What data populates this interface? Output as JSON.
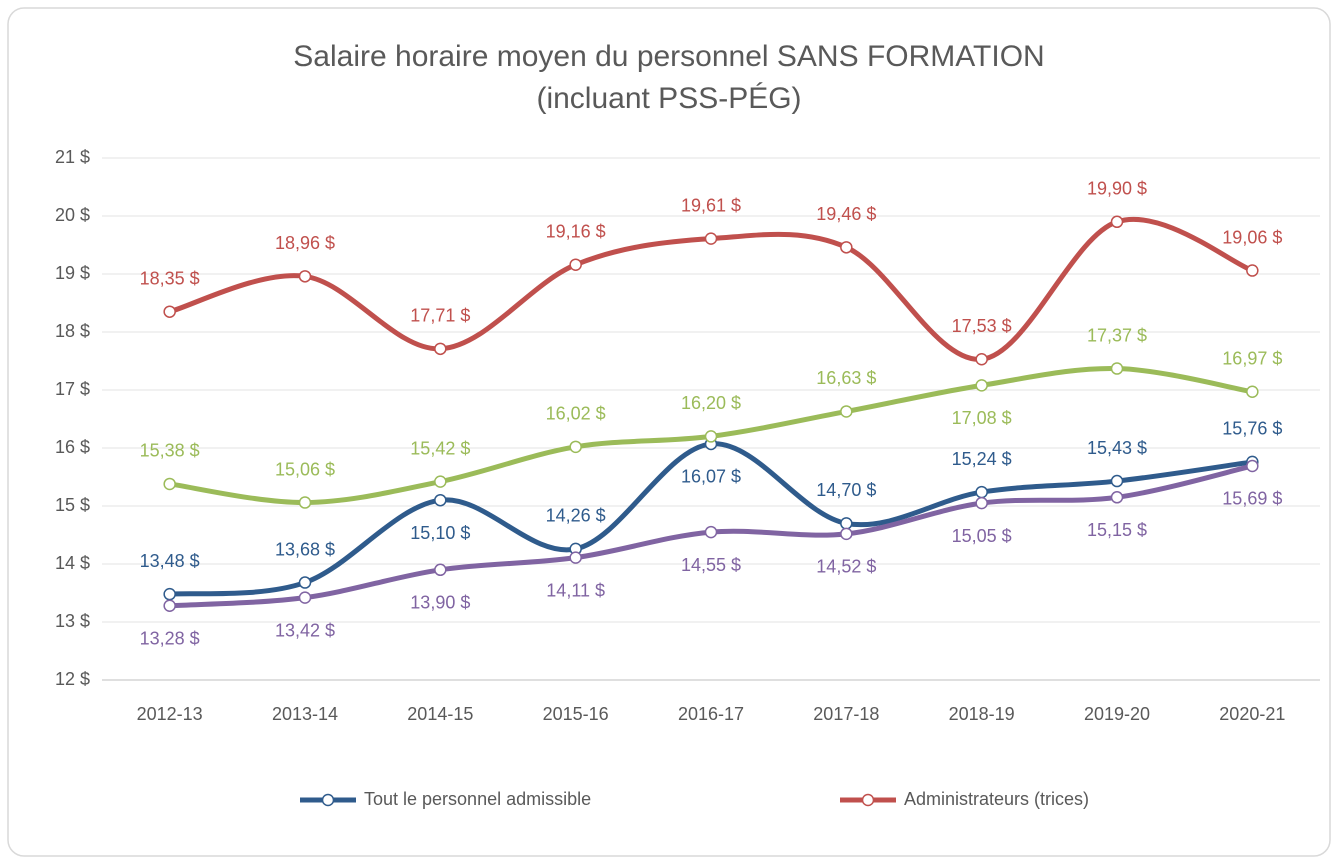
{
  "chart_data": {
    "type": "line",
    "title": "Salaire horaire moyen du personnel SANS FORMATION",
    "subtitle": "(incluant PSS-PÉG)",
    "categories": [
      "2012-13",
      "2013-14",
      "2014-15",
      "2015-16",
      "2016-17",
      "2017-18",
      "2018-19",
      "2019-20",
      "2020-21"
    ],
    "series": [
      {
        "name": "Tout le personnel admissible",
        "color": "#2f5b8c",
        "values": [
          13.48,
          13.68,
          15.1,
          14.26,
          16.07,
          14.7,
          15.24,
          15.43,
          15.76
        ],
        "value_labels": [
          "13,48 $",
          "13,68 $",
          "15,10 $",
          "14,26 $",
          "16,07 $",
          "14,70 $",
          "15,24 $",
          "15,43 $",
          "15,76 $"
        ]
      },
      {
        "name": "Administrateurs (trices)",
        "color": "#c0504d",
        "values": [
          18.35,
          18.96,
          17.71,
          19.16,
          19.61,
          19.46,
          17.53,
          19.9,
          19.06
        ],
        "value_labels": [
          "18,35 $",
          "18,96 $",
          "17,71 $",
          "19,16 $",
          "19,61 $",
          "19,46 $",
          "17,53 $",
          "19,90 $",
          "19,06 $"
        ]
      },
      {
        "color": "#9bbb59",
        "values": [
          15.38,
          15.06,
          15.42,
          16.02,
          16.2,
          16.63,
          17.08,
          17.37,
          16.97
        ],
        "value_labels": [
          "15,38 $",
          "15,06 $",
          "15,42 $",
          "16,02 $",
          "16,20 $",
          "16,63 $",
          "17,08 $",
          "17,37 $",
          "16,97 $"
        ]
      },
      {
        "color": "#8064a2",
        "values": [
          13.28,
          13.42,
          13.9,
          14.11,
          14.55,
          14.52,
          15.05,
          15.15,
          15.69
        ],
        "value_labels": [
          "13,28 $",
          "13,42 $",
          "13,90 $",
          "14,11 $",
          "14,55 $",
          "14,52 $",
          "15,05 $",
          "15,15 $",
          "15,69 $"
        ]
      }
    ],
    "ylim": [
      12,
      21
    ],
    "yticks": [
      {
        "value": 12,
        "label": "12 $"
      },
      {
        "value": 13,
        "label": "13 $"
      },
      {
        "value": 14,
        "label": "14 $"
      },
      {
        "value": 15,
        "label": "15 $"
      },
      {
        "value": 16,
        "label": "16 $"
      },
      {
        "value": 17,
        "label": "17 $"
      },
      {
        "value": 18,
        "label": "18 $"
      },
      {
        "value": 19,
        "label": "19 $"
      },
      {
        "value": 20,
        "label": "20 $"
      },
      {
        "value": 21,
        "label": "21 $"
      }
    ],
    "grid": true,
    "legend": "bottom"
  }
}
